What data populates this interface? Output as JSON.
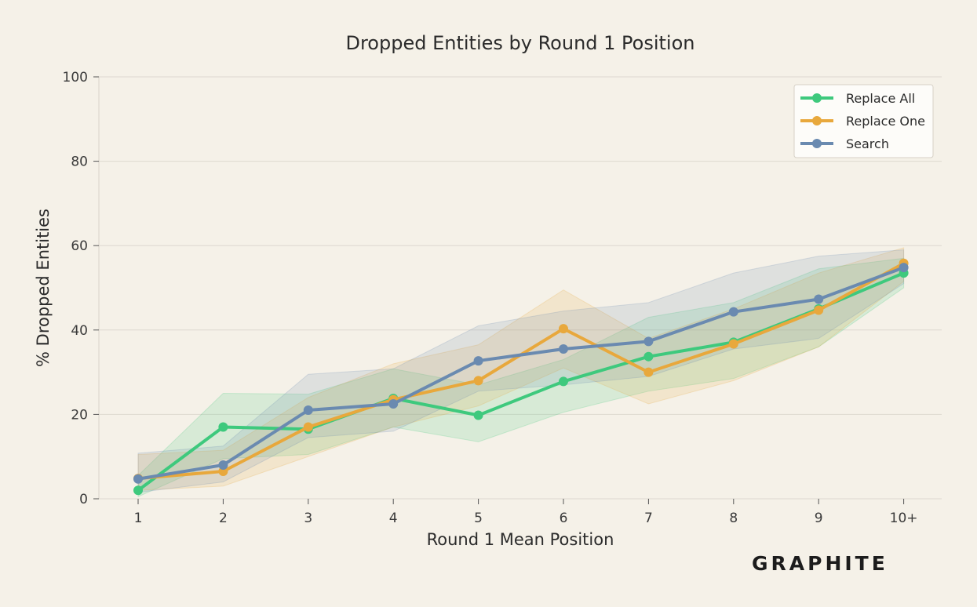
{
  "chart_data": {
    "type": "line",
    "title": "Dropped Entities by Round 1 Position",
    "xlabel": "Round 1 Mean Position",
    "ylabel": "% Dropped Entities",
    "categories": [
      "1",
      "2",
      "3",
      "4",
      "5",
      "6",
      "7",
      "8",
      "9",
      "10+"
    ],
    "ylim": [
      0,
      100
    ],
    "yticks": [
      0,
      20,
      40,
      60,
      80,
      100
    ],
    "grid": "horizontal",
    "legend_position": "top-right",
    "series": [
      {
        "name": "Replace All",
        "color": "#3ec97d",
        "values": [
          2.0,
          17.0,
          16.5,
          23.8,
          19.8,
          27.8,
          33.7,
          37.1,
          45.0,
          53.5
        ],
        "lower": [
          0.5,
          9.5,
          10.5,
          17.0,
          13.5,
          20.5,
          25.5,
          28.5,
          36.0,
          50.0
        ],
        "upper": [
          5.5,
          25.0,
          24.8,
          30.8,
          27.0,
          33.0,
          43.0,
          46.5,
          54.5,
          57.0
        ]
      },
      {
        "name": "Replace One",
        "color": "#e8a83c",
        "values": [
          4.8,
          6.5,
          17.0,
          23.5,
          28.0,
          40.3,
          30.0,
          36.7,
          44.7,
          55.8
        ],
        "lower": [
          2.0,
          3.0,
          10.0,
          17.0,
          22.0,
          31.0,
          22.5,
          28.0,
          36.0,
          51.5
        ],
        "upper": [
          10.5,
          11.5,
          24.0,
          32.0,
          36.5,
          49.5,
          38.0,
          45.0,
          53.5,
          59.5
        ]
      },
      {
        "name": "Search",
        "color": "#6a8ab0",
        "values": [
          4.7,
          8.0,
          21.0,
          22.5,
          32.7,
          35.5,
          37.3,
          44.3,
          47.3,
          54.8
        ],
        "lower": [
          1.5,
          4.0,
          14.5,
          16.0,
          25.5,
          27.0,
          29.0,
          35.5,
          38.0,
          51.0
        ],
        "upper": [
          10.8,
          12.5,
          29.5,
          30.8,
          41.0,
          44.5,
          46.5,
          53.5,
          57.5,
          59.0
        ]
      }
    ]
  },
  "brand": {
    "logo_text": "GRAPHITE"
  }
}
